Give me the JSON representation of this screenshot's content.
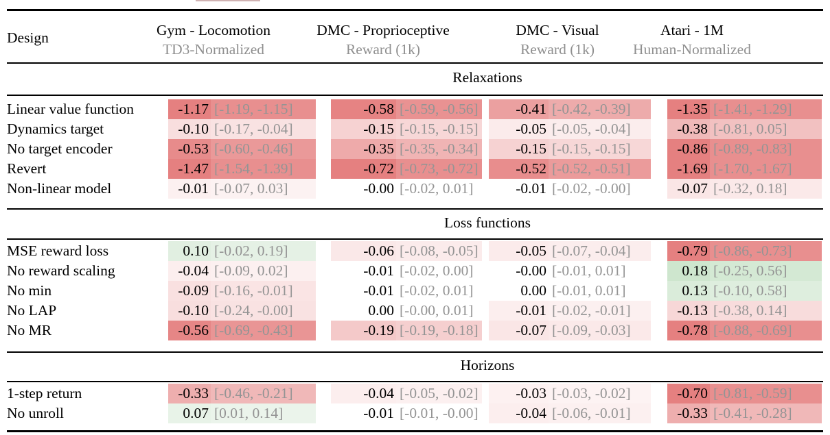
{
  "table": {
    "design_label": "Design",
    "columns": [
      {
        "title": "Gym - Locomotion",
        "subtitle": "TD3-Normalized"
      },
      {
        "title": "DMC - Proprioceptive",
        "subtitle": "Reward (1k)"
      },
      {
        "title": "DMC - Visual",
        "subtitle": "Reward (1k)"
      },
      {
        "title": "Atari - 1M",
        "subtitle": "Human-Normalized"
      }
    ],
    "sections": [
      {
        "title": "Relaxations",
        "rows": [
          {
            "label": "Linear value function",
            "cells": [
              {
                "v": "-1.17",
                "ci": "[-1.19, -1.15]",
                "bg": "#e58080"
              },
              {
                "v": "-0.58",
                "ci": "[-0.59, -0.56]",
                "bg": "#e68383"
              },
              {
                "v": "-0.41",
                "ci": "[-0.42, -0.39]",
                "bg": "#eba0a0"
              },
              {
                "v": "-1.35",
                "ci": "[-1.41, -1.29]",
                "bg": "#e58080"
              }
            ]
          },
          {
            "label": "Dynamics target",
            "cells": [
              {
                "v": "-0.10",
                "ci": "[-0.17, -0.04]",
                "bg": "#f8dede"
              },
              {
                "v": "-0.15",
                "ci": "[-0.15, -0.15]",
                "bg": "#f6d2d2"
              },
              {
                "v": "-0.05",
                "ci": "[-0.05, -0.04]",
                "bg": "#fbebeb"
              },
              {
                "v": "-0.38",
                "ci": "[-0.81, 0.05]",
                "bg": "#f0b9b9"
              }
            ]
          },
          {
            "label": "No target encoder",
            "cells": [
              {
                "v": "-0.53",
                "ci": "[-0.60, -0.46]",
                "bg": "#e78b8b"
              },
              {
                "v": "-0.35",
                "ci": "[-0.35, -0.34]",
                "bg": "#eeaaaa"
              },
              {
                "v": "-0.15",
                "ci": "[-0.15, -0.15]",
                "bg": "#f6d2d2"
              },
              {
                "v": "-0.86",
                "ci": "[-0.89, -0.83]",
                "bg": "#e58080"
              }
            ]
          },
          {
            "label": "Revert",
            "cells": [
              {
                "v": "-1.47",
                "ci": "[-1.54, -1.39]",
                "bg": "#e58080"
              },
              {
                "v": "-0.72",
                "ci": "[-0.73, -0.72]",
                "bg": "#e58080"
              },
              {
                "v": "-0.52",
                "ci": "[-0.52, -0.51]",
                "bg": "#e88d8d"
              },
              {
                "v": "-1.69",
                "ci": "[-1.70, -1.67]",
                "bg": "#e58080"
              }
            ]
          },
          {
            "label": "Non-linear model",
            "cells": [
              {
                "v": "-0.01",
                "ci": "[-0.07, 0.03]",
                "bg": "#fcf0f0"
              },
              {
                "v": "-0.00",
                "ci": "[-0.02, 0.01]",
                "bg": "none"
              },
              {
                "v": "-0.01",
                "ci": "[-0.02, -0.00]",
                "bg": "none"
              },
              {
                "v": "-0.07",
                "ci": "[-0.32, 0.18]",
                "bg": "#fae6e6"
              }
            ]
          }
        ]
      },
      {
        "title": "Loss functions",
        "rows": [
          {
            "label": "MSE reward loss",
            "cells": [
              {
                "v": "0.10",
                "ci": "[-0.02, 0.19]",
                "bg": "#e1efe1"
              },
              {
                "v": "-0.06",
                "ci": "[-0.08, -0.05]",
                "bg": "#fae8e8"
              },
              {
                "v": "-0.05",
                "ci": "[-0.07, -0.04]",
                "bg": "#fbebeb"
              },
              {
                "v": "-0.79",
                "ci": "[-0.86, -0.73]",
                "bg": "#e58080"
              }
            ]
          },
          {
            "label": "No reward scaling",
            "cells": [
              {
                "v": "-0.04",
                "ci": "[-0.09, 0.02]",
                "bg": "#fceeee"
              },
              {
                "v": "-0.01",
                "ci": "[-0.02, 0.00]",
                "bg": "none"
              },
              {
                "v": "-0.00",
                "ci": "[-0.01, 0.01]",
                "bg": "none"
              },
              {
                "v": "0.18",
                "ci": "[-0.25, 0.56]",
                "bg": "#cee6ce"
              }
            ]
          },
          {
            "label": "No min",
            "cells": [
              {
                "v": "-0.09",
                "ci": "[-0.16, -0.01]",
                "bg": "#f9e0e0"
              },
              {
                "v": "-0.01",
                "ci": "[-0.02, 0.01]",
                "bg": "none"
              },
              {
                "v": "0.00",
                "ci": "[-0.01, 0.01]",
                "bg": "none"
              },
              {
                "v": "0.13",
                "ci": "[-0.10, 0.58]",
                "bg": "#daecda"
              }
            ]
          },
          {
            "label": "No LAP",
            "cells": [
              {
                "v": "-0.10",
                "ci": "[-0.24, -0.00]",
                "bg": "#f8dede"
              },
              {
                "v": "0.00",
                "ci": "[-0.00, 0.01]",
                "bg": "none"
              },
              {
                "v": "-0.01",
                "ci": "[-0.02, -0.01]",
                "bg": "#fceeee"
              },
              {
                "v": "-0.13",
                "ci": "[-0.38, 0.14]",
                "bg": "#f7d7d7"
              }
            ]
          },
          {
            "label": "No MR",
            "cells": [
              {
                "v": "-0.56",
                "ci": "[-0.69, -0.43]",
                "bg": "#e68686"
              },
              {
                "v": "-0.19",
                "ci": "[-0.19, -0.18]",
                "bg": "#f4c9c9"
              },
              {
                "v": "-0.07",
                "ci": "[-0.09, -0.03]",
                "bg": "#fae6e6"
              },
              {
                "v": "-0.78",
                "ci": "[-0.88, -0.69]",
                "bg": "#e58080"
              }
            ]
          }
        ]
      },
      {
        "title": "Horizons",
        "rows": [
          {
            "label": "1-step return",
            "cells": [
              {
                "v": "-0.33",
                "ci": "[-0.46, -0.21]",
                "bg": "#eeaeae"
              },
              {
                "v": "-0.04",
                "ci": "[-0.05, -0.02]",
                "bg": "#fceeee"
              },
              {
                "v": "-0.03",
                "ci": "[-0.03, -0.02]",
                "bg": "#fdf1f1"
              },
              {
                "v": "-0.70",
                "ci": "[-0.81, -0.59]",
                "bg": "#e58080"
              }
            ]
          },
          {
            "label": "No unroll",
            "cells": [
              {
                "v": "0.07",
                "ci": "[0.01, 0.14]",
                "bg": "#e8f3e8"
              },
              {
                "v": "-0.01",
                "ci": "[-0.01, -0.00]",
                "bg": "none"
              },
              {
                "v": "-0.04",
                "ci": "[-0.06, -0.01]",
                "bg": "#fceeee"
              },
              {
                "v": "-0.33",
                "ci": "[-0.41, -0.28]",
                "bg": "#eeaeae"
              }
            ]
          }
        ]
      }
    ]
  },
  "colors": {
    "max_negative_red": "#e58080",
    "positive_green": "#cee6ce",
    "ci_text_gray": "#949494",
    "subtitle_gray": "#8f8f8f",
    "rule_black": "#000000"
  }
}
